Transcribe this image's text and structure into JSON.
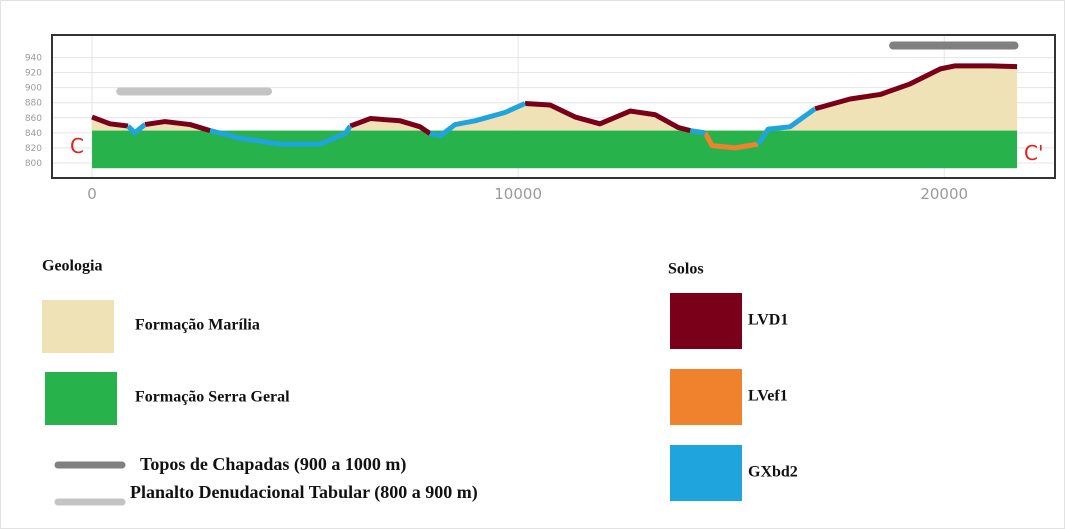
{
  "chart_data": {
    "type": "profile",
    "xlim": [
      -940,
      22600
    ],
    "ylim": [
      780,
      970
    ],
    "xticks": [
      0,
      10000,
      20000
    ],
    "yticks": [
      800,
      820,
      840,
      860,
      880,
      900,
      920,
      940
    ],
    "grid": true,
    "x": [
      0,
      420,
      845,
      1000,
      1240,
      1710,
      2300,
      2770,
      3470,
      4410,
      5350,
      5940,
      6060,
      6530,
      7230,
      7700,
      7930,
      8170,
      8520,
      8990,
      9690,
      10160,
      10750,
      11340,
      11920,
      12630,
      13220,
      13760,
      14040,
      14390,
      14550,
      15090,
      15630,
      15870,
      16380,
      16970,
      17790,
      18500,
      19200,
      19910,
      20260,
      21080,
      21710
    ],
    "series": [
      {
        "name": "LVD1",
        "color": "#7a0019",
        "values": [
          861,
          852,
          849,
          null,
          851,
          855,
          851,
          843,
          null,
          null,
          null,
          null,
          849,
          859,
          856,
          848,
          839,
          null,
          null,
          null,
          null,
          879,
          877,
          861,
          852,
          869,
          864,
          847,
          843,
          null,
          null,
          null,
          null,
          null,
          null,
          872,
          885,
          891,
          905,
          925,
          929,
          929,
          928
        ]
      },
      {
        "name": "LVef1",
        "color": "#f0822d",
        "values": [
          null,
          null,
          null,
          null,
          null,
          null,
          null,
          null,
          null,
          null,
          null,
          null,
          null,
          null,
          null,
          null,
          null,
          null,
          null,
          null,
          null,
          null,
          null,
          null,
          null,
          null,
          null,
          null,
          null,
          840,
          823,
          820,
          825,
          null,
          null,
          null,
          null,
          null,
          null,
          null,
          null,
          null,
          null
        ]
      },
      {
        "name": "GXbd2",
        "color": "#20a4dd",
        "values": [
          null,
          null,
          849,
          840,
          851,
          null,
          null,
          843,
          833,
          825,
          825,
          839,
          849,
          null,
          null,
          null,
          839,
          836,
          851,
          856,
          867,
          879,
          null,
          null,
          null,
          null,
          null,
          null,
          843,
          840,
          null,
          null,
          825,
          845,
          848,
          872,
          null,
          null,
          null,
          null,
          null,
          null,
          null
        ]
      }
    ],
    "geology": [
      {
        "name": "Formação Marília",
        "color": "#efe2b6"
      },
      {
        "name": "Formação Serra Geral",
        "color": "#27b24b",
        "x": [
          0,
          21710
        ],
        "top": 843,
        "bottom": 793
      }
    ],
    "bands": [
      {
        "name": "Topos de Chapadas (900 a 1000 m)",
        "color": "#808080",
        "x": [
          18800,
          21650
        ],
        "y": 956
      },
      {
        "name": "Planalto Denudacional Tabular (800 a 900 m)",
        "color": "#c4c4c4",
        "x": [
          660,
          4130
        ],
        "y": 895
      }
    ],
    "start_label": "C",
    "end_label": "C'",
    "geology_title": "Geologia",
    "soils_title": "Solos"
  }
}
